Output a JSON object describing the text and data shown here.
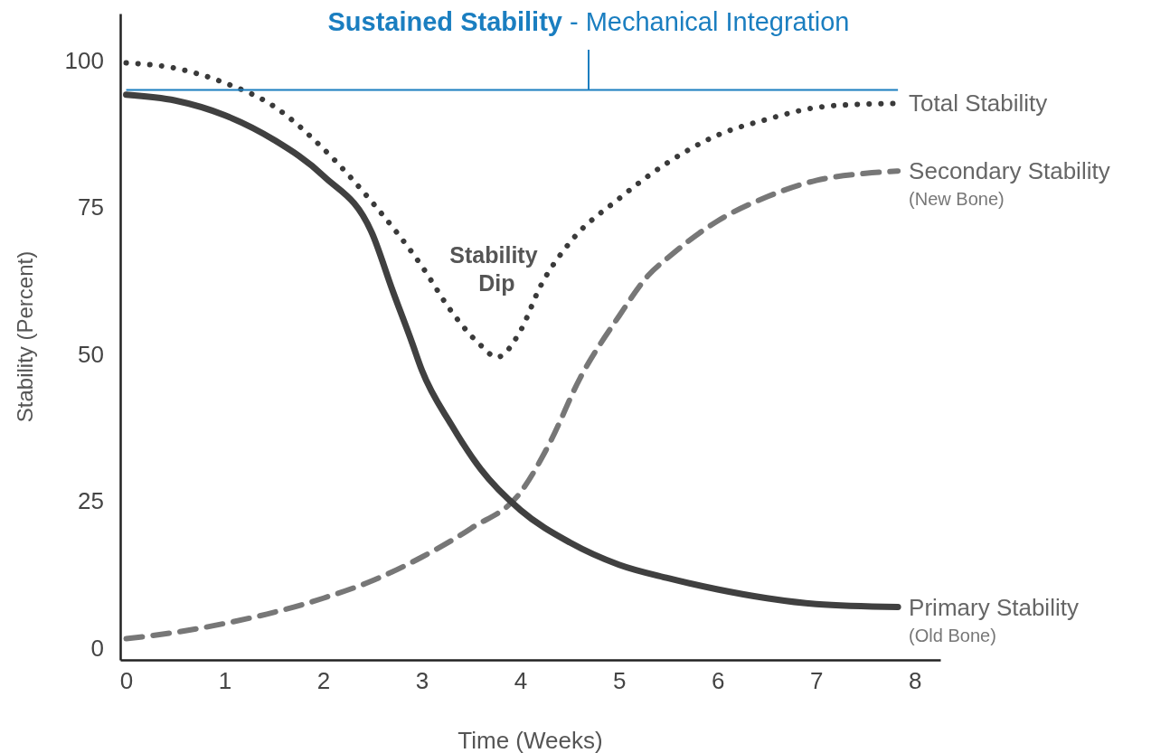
{
  "chart_data": {
    "type": "line",
    "title": "Sustained Stability",
    "subtitle": "- Mechanical Integration",
    "xlabel": "Time (Weeks)",
    "ylabel": "Stability (Percent)",
    "xlim": [
      -0.06,
      8.26
    ],
    "ylim": [
      -2,
      108
    ],
    "xticks": [
      0,
      1,
      2,
      3,
      4,
      5,
      6,
      7,
      8
    ],
    "yticks": [
      0,
      25,
      50,
      75,
      100
    ],
    "grid": false,
    "legend": false,
    "marker": "none",
    "ref_lines": [
      {
        "axis": "y",
        "value": 95,
        "color": "#1a7ec0"
      }
    ],
    "series": [
      {
        "name": "Total Stability",
        "color": "#3a3a3a",
        "line_style": "dotted",
        "x": [
          0,
          0.5,
          1,
          1.5,
          2,
          2.5,
          3,
          3.3,
          3.6,
          3.76,
          4.0,
          4.2,
          4.5,
          5,
          5.5,
          6,
          6.5,
          7,
          7.5,
          7.83
        ],
        "values": [
          99.6,
          98.7,
          96.2,
          92.2,
          85,
          75.8,
          65,
          57.3,
          51.5,
          49.5,
          54,
          61.5,
          69,
          76.5,
          82.7,
          87.3,
          90,
          92,
          92.6,
          92.7
        ]
      },
      {
        "name": "Secondary Stability",
        "color": "#777777",
        "line_style": "dashed",
        "x": [
          0,
          0.5,
          1,
          1.5,
          2,
          2.5,
          3,
          3.5,
          4,
          4.3,
          4.6,
          5,
          5.3,
          5.5,
          6,
          6.5,
          7,
          7.5,
          7.83
        ],
        "values": [
          1.6,
          2.7,
          4.2,
          6.1,
          8.5,
          11.5,
          15.5,
          20.4,
          26.5,
          35,
          45.8,
          56.5,
          63.5,
          66.5,
          72.7,
          76.8,
          79.6,
          80.8,
          81.2
        ]
      },
      {
        "name": "Primary Stability",
        "color": "#404040",
        "line_style": "solid",
        "x": [
          0,
          0.5,
          1,
          1.5,
          2,
          2.5,
          2.7,
          2.9,
          3,
          3.3,
          3.6,
          4,
          4.5,
          5,
          5.5,
          6,
          6.5,
          7,
          7.83
        ],
        "values": [
          94.2,
          93.2,
          90.7,
          86.5,
          80.4,
          70.4,
          61,
          52,
          47.3,
          38,
          30.4,
          23.5,
          18,
          14.2,
          11.9,
          10,
          8.5,
          7.5,
          7
        ]
      }
    ],
    "annotations": [
      "Stability Dip",
      "(New Bone)",
      "(Old Bone)"
    ]
  }
}
